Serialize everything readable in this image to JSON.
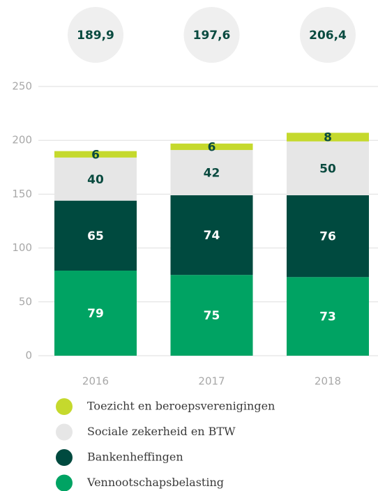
{
  "chart_data": {
    "type": "stacked_bar",
    "categories": [
      "2016",
      "2017",
      "2018"
    ],
    "total_labels": [
      "189,9",
      "197,6",
      "206,4"
    ],
    "series": [
      {
        "name": "Vennootschapsbelasting",
        "color": "#00a363",
        "values": [
          79,
          75,
          73
        ]
      },
      {
        "name": "Bankenheffingen",
        "color": "#004a3f",
        "values": [
          65,
          74,
          76
        ]
      },
      {
        "name": "Sociale zekerheid en BTW",
        "color": "#e6e6e6",
        "values": [
          40,
          42,
          50
        ]
      },
      {
        "name": "Toezicht en beroepsverenigingen",
        "color": "#c5d92d",
        "values": [
          6,
          6,
          8
        ]
      }
    ],
    "ylim": [
      0,
      250
    ],
    "yticks": [
      0,
      50,
      100,
      150,
      200,
      250
    ],
    "grid": true
  }
}
